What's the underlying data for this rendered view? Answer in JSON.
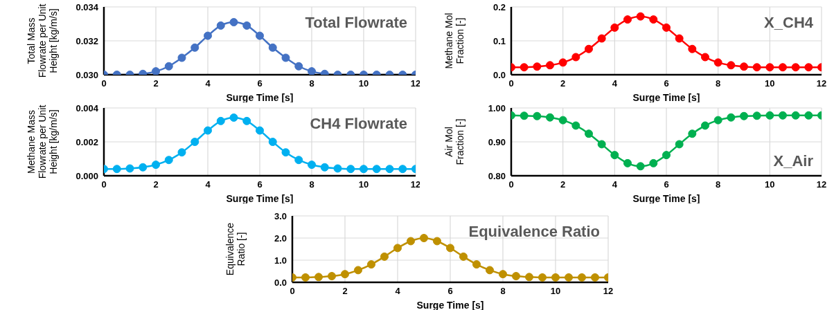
{
  "chart_data": [
    {
      "type": "line",
      "title": "Total Flowrate",
      "xlabel": "Surge Time [s]",
      "ylabel": "Total Mass Flowrate per Unit Height [kg/m/s]",
      "x": [
        0,
        0.5,
        1,
        1.5,
        2,
        2.5,
        3,
        3.5,
        4,
        4.5,
        5,
        5.5,
        6,
        6.5,
        7,
        7.5,
        8,
        8.5,
        9,
        9.5,
        10,
        10.5,
        11,
        11.5,
        12
      ],
      "series": [
        {
          "color": "#4472c4",
          "values": [
            0.03,
            0.03,
            0.03,
            0.03005,
            0.0302,
            0.0305,
            0.031,
            0.0316,
            0.0323,
            0.0329,
            0.0331,
            0.0329,
            0.0323,
            0.0316,
            0.031,
            0.0305,
            0.0302,
            0.03005,
            0.03,
            0.03,
            0.03,
            0.03,
            0.03,
            0.03,
            0.03
          ]
        }
      ],
      "xlim": [
        0,
        12
      ],
      "xticks": [
        0,
        2,
        4,
        6,
        8,
        10,
        12
      ],
      "ylim": [
        0.03,
        0.034
      ],
      "yticks": [
        {
          "value": 0.03,
          "label": "0.030"
        },
        {
          "value": 0.032,
          "label": "0.032"
        },
        {
          "value": 0.034,
          "label": "0.034"
        }
      ],
      "grid": true,
      "legend": false,
      "marker": "circle",
      "line_style": "solid"
    },
    {
      "type": "line",
      "title": "X_CH4",
      "xlabel": "Surge Time [s]",
      "ylabel": "Methane Mol Fraction [-]",
      "x": [
        0,
        0.5,
        1,
        1.5,
        2,
        2.5,
        3,
        3.5,
        4,
        4.5,
        5,
        5.5,
        6,
        6.5,
        7,
        7.5,
        8,
        8.5,
        9,
        9.5,
        10,
        10.5,
        11,
        11.5,
        12
      ],
      "series": [
        {
          "color": "#ff0000",
          "values": [
            0.022,
            0.022,
            0.024,
            0.028,
            0.036,
            0.052,
            0.076,
            0.107,
            0.139,
            0.163,
            0.172,
            0.163,
            0.139,
            0.107,
            0.076,
            0.052,
            0.036,
            0.028,
            0.024,
            0.022,
            0.022,
            0.022,
            0.022,
            0.022,
            0.022
          ]
        }
      ],
      "xlim": [
        0,
        12
      ],
      "xticks": [
        0,
        2,
        4,
        6,
        8,
        10,
        12
      ],
      "ylim": [
        0,
        0.2
      ],
      "yticks": [
        {
          "value": 0,
          "label": "0.0"
        },
        0.1,
        0.2
      ],
      "grid": true,
      "legend": false,
      "marker": "circle",
      "line_style": "solid"
    },
    {
      "type": "line",
      "title": "CH4 Flowrate",
      "xlabel": "Surge Time [s]",
      "ylabel": "Methane Mass Flowrate per Unit Height [kg/m/s]",
      "x": [
        0,
        0.5,
        1,
        1.5,
        2,
        2.5,
        3,
        3.5,
        4,
        4.5,
        5,
        5.5,
        6,
        6.5,
        7,
        7.5,
        8,
        8.5,
        9,
        9.5,
        10,
        10.5,
        11,
        11.5,
        12
      ],
      "series": [
        {
          "color": "#00b0f0",
          "values": [
            0.0004,
            0.0004,
            0.00043,
            0.0005,
            0.00065,
            0.00093,
            0.00138,
            0.002,
            0.00267,
            0.00323,
            0.00343,
            0.00323,
            0.00267,
            0.002,
            0.00138,
            0.00093,
            0.00065,
            0.0005,
            0.00043,
            0.0004,
            0.0004,
            0.0004,
            0.0004,
            0.0004,
            0.0004
          ]
        }
      ],
      "xlim": [
        0,
        12
      ],
      "xticks": [
        0,
        2,
        4,
        6,
        8,
        10,
        12
      ],
      "ylim": [
        0,
        0.004
      ],
      "yticks": [
        {
          "value": 0,
          "label": "0.000"
        },
        {
          "value": 0.002,
          "label": "0.002"
        },
        {
          "value": 0.004,
          "label": "0.004"
        }
      ],
      "grid": true,
      "legend": false,
      "marker": "circle",
      "line_style": "solid"
    },
    {
      "type": "line",
      "title": "X_Air",
      "xlabel": "Surge Time [s]",
      "ylabel": "Air Mol Fraction [-]",
      "x": [
        0,
        0.5,
        1,
        1.5,
        2,
        2.5,
        3,
        3.5,
        4,
        4.5,
        5,
        5.5,
        6,
        6.5,
        7,
        7.5,
        8,
        8.5,
        9,
        9.5,
        10,
        10.5,
        11,
        11.5,
        12
      ],
      "series": [
        {
          "color": "#00b050",
          "values": [
            0.978,
            0.977,
            0.976,
            0.972,
            0.964,
            0.948,
            0.924,
            0.893,
            0.861,
            0.837,
            0.828,
            0.837,
            0.861,
            0.893,
            0.924,
            0.948,
            0.964,
            0.972,
            0.976,
            0.977,
            0.978,
            0.978,
            0.978,
            0.978,
            0.978
          ]
        }
      ],
      "xlim": [
        0,
        12
      ],
      "xticks": [
        0,
        2,
        4,
        6,
        8,
        10,
        12
      ],
      "ylim": [
        0.8,
        1.0
      ],
      "yticks": [
        {
          "value": 0.8,
          "label": "0.80"
        },
        {
          "value": 0.9,
          "label": "0.90"
        },
        {
          "value": 1.0,
          "label": "1.00"
        }
      ],
      "grid": true,
      "legend": false,
      "marker": "circle",
      "line_style": "solid"
    },
    {
      "type": "line",
      "title": "Equivalence Ratio",
      "xlabel": "Surge Time [s]",
      "ylabel": "Equivalence Ratio [-]",
      "x": [
        0,
        0.5,
        1,
        1.5,
        2,
        2.5,
        3,
        3.5,
        4,
        4.5,
        5,
        5.5,
        6,
        6.5,
        7,
        7.5,
        8,
        8.5,
        9,
        9.5,
        10,
        10.5,
        11,
        11.5,
        12
      ],
      "series": [
        {
          "color": "#bf9000",
          "values": [
            0.22,
            0.22,
            0.24,
            0.28,
            0.37,
            0.55,
            0.81,
            1.16,
            1.55,
            1.86,
            2.0,
            1.86,
            1.55,
            1.16,
            0.81,
            0.55,
            0.37,
            0.28,
            0.24,
            0.22,
            0.22,
            0.22,
            0.22,
            0.22,
            0.22
          ]
        }
      ],
      "xlim": [
        0,
        12
      ],
      "xticks": [
        0,
        2,
        4,
        6,
        8,
        10,
        12
      ],
      "ylim": [
        0,
        3
      ],
      "yticks": [
        {
          "value": 0,
          "label": "0.0"
        },
        {
          "value": 1,
          "label": "1.0"
        },
        {
          "value": 2,
          "label": "2.0"
        },
        {
          "value": 3,
          "label": "3.0"
        }
      ],
      "grid": true,
      "legend": false,
      "marker": "circle",
      "line_style": "solid"
    }
  ]
}
